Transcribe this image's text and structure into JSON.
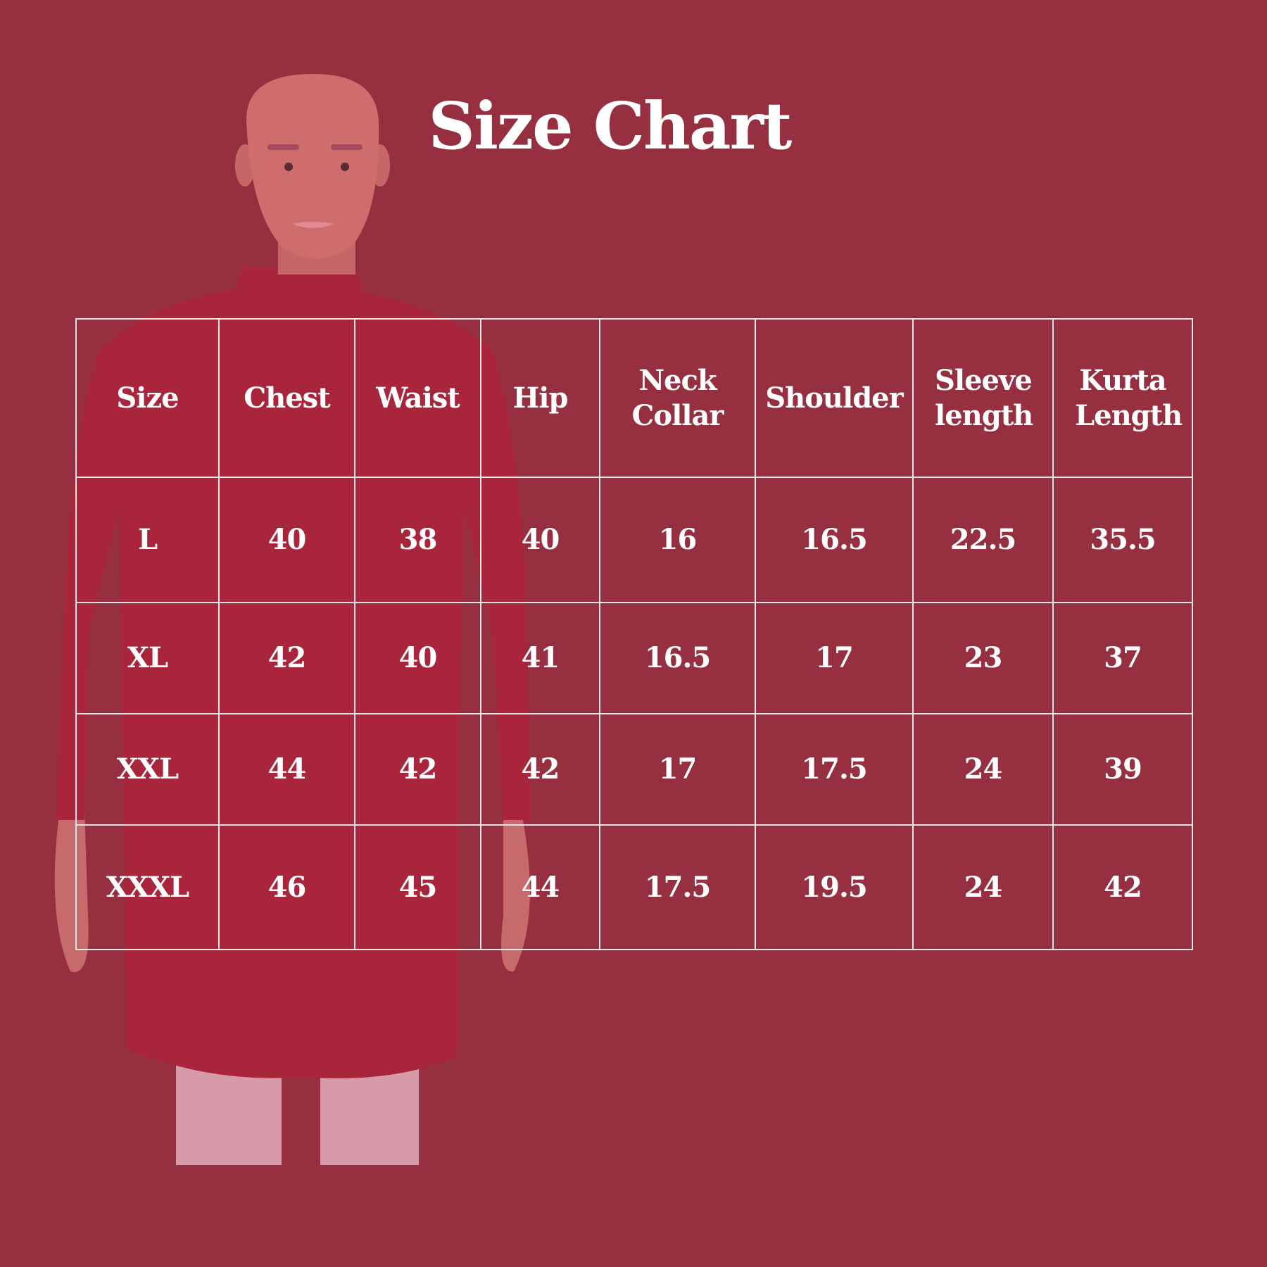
{
  "title": "Size Chart",
  "colors": {
    "background": "#962f40",
    "text": "#ffffff",
    "grid": "#f4e6e8",
    "kurta": "#a8253c"
  },
  "image": "mannequin wearing red kurta with white pants",
  "table": {
    "headers": [
      "Size",
      "Chest",
      "Waist",
      "Hip",
      "Neck Collar",
      "Shoulder",
      "Sleeve length",
      "Kurta Length"
    ],
    "rows": [
      [
        "L",
        "40",
        "38",
        "40",
        "16",
        "16.5",
        "22.5",
        "35.5"
      ],
      [
        "XL",
        "42",
        "40",
        "41",
        "16.5",
        "17",
        "23",
        "37"
      ],
      [
        "XXL",
        "44",
        "42",
        "42",
        "17",
        "17.5",
        "24",
        "39"
      ],
      [
        "XXXL",
        "46",
        "45",
        "44",
        "17.5",
        "19.5",
        "24",
        "42"
      ]
    ]
  }
}
